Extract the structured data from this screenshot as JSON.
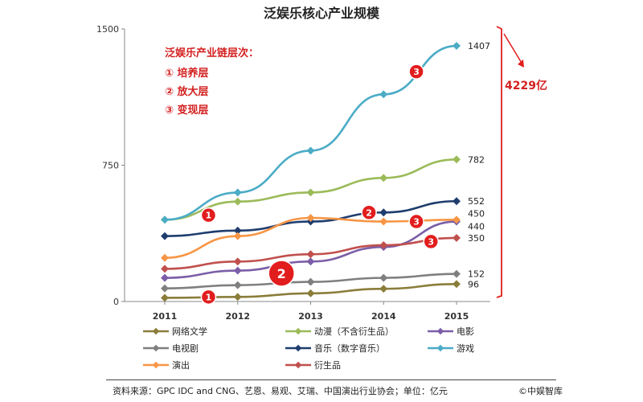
{
  "chart_data": {
    "type": "line",
    "title": "泛娱乐核心产业规模",
    "x": [
      "2011",
      "2012",
      "2013",
      "2014",
      "2015"
    ],
    "y_ticks": [
      "0",
      "750",
      "1500"
    ],
    "ylim": [
      0,
      1500
    ],
    "series": [
      {
        "name": "网络文学",
        "color": "#8a7d3a",
        "values": [
          20,
          25,
          45,
          70,
          96
        ],
        "end_label": "96"
      },
      {
        "name": "动漫（不含衍生品）",
        "color": "#9bbb59",
        "values": [
          450,
          550,
          600,
          680,
          782
        ],
        "end_label": "782"
      },
      {
        "name": "电影",
        "color": "#7b5ea7",
        "values": [
          130,
          170,
          220,
          300,
          440
        ],
        "end_label": "440"
      },
      {
        "name": "电视剧",
        "color": "#7f7f7f",
        "values": [
          72,
          90,
          108,
          130,
          152
        ],
        "end_label": "152"
      },
      {
        "name": "音乐（数字音乐）",
        "color": "#1f3d6e",
        "values": [
          360,
          390,
          440,
          490,
          552
        ],
        "end_label": "552"
      },
      {
        "name": "游戏",
        "color": "#4bacc6",
        "values": [
          450,
          600,
          830,
          1140,
          1407
        ],
        "end_label": "1407"
      },
      {
        "name": "演出",
        "color": "#f79646",
        "values": [
          240,
          360,
          460,
          440,
          450
        ],
        "end_label": "450"
      },
      {
        "name": "衍生品",
        "color": "#c0504d",
        "values": [
          180,
          220,
          260,
          310,
          350
        ],
        "end_label": "350"
      }
    ],
    "annotation": {
      "title": "泛娱乐产业链层次：",
      "items": [
        "① 培养层",
        "② 放大层",
        "③ 变现层"
      ]
    },
    "total_label": "4229亿",
    "badges": [
      {
        "text": "1",
        "size": "small",
        "x": "2011.6",
        "y": 475
      },
      {
        "text": "1",
        "size": "small",
        "x": "2011.6",
        "y": 25
      },
      {
        "text": "2",
        "size": "large",
        "x": "2012.6",
        "y": 155
      },
      {
        "text": "2",
        "size": "small",
        "x": "2013.8",
        "y": 490
      },
      {
        "text": "3",
        "size": "small",
        "x": "2014.45",
        "y": 440
      },
      {
        "text": "3",
        "size": "small",
        "x": "2014.65",
        "y": 330
      },
      {
        "text": "3",
        "size": "small",
        "x": "2014.45",
        "y": 1265
      }
    ]
  },
  "source": "资料来源：GPC IDC and CNG、艺恩、易观、艾瑞、中国演出行业协会；单位：亿元",
  "brand": "©中娱智库"
}
